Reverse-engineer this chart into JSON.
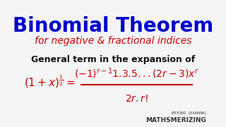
{
  "title": "Binomial Theorem",
  "subtitle": "for negative & fractional indices",
  "line3": "General term in the expansion of",
  "formula_lhs": "$(1+x)^{\\frac{1}{2}}=$",
  "formula_num": "$(-1)^{r-1}1.3.5...(2r-3)x^{r}$",
  "formula_den": "$2r.r!$",
  "watermark": "MATHSMERIZING",
  "bg_color": "#f5f5f5",
  "title_color": "#0000cc",
  "subtitle_color": "#cc0000",
  "body_color": "#111111",
  "formula_color": "#cc0000",
  "watermark_color": "#333333"
}
